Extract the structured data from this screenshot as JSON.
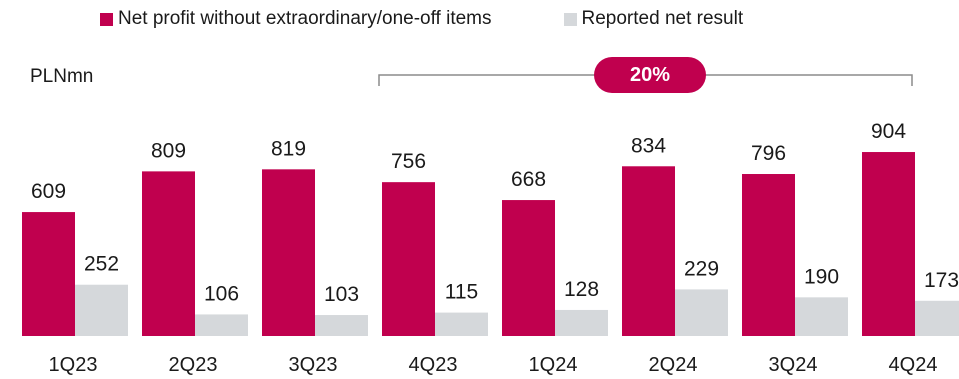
{
  "colors": {
    "series_primary": "#c0004e",
    "series_secondary": "#d5d8db",
    "bracket": "#8c8c8c"
  },
  "legend": {
    "primary_label": "Net profit without extraordinary/one-off items",
    "secondary_label": "Reported net result"
  },
  "unit_label": "PLNmn",
  "growth_badge": "20%",
  "chart_data": {
    "type": "bar",
    "categories": [
      "1Q23",
      "2Q23",
      "3Q23",
      "4Q23",
      "1Q24",
      "2Q24",
      "3Q24",
      "4Q24"
    ],
    "series": [
      {
        "name": "Net profit without extraordinary/one-off items",
        "values": [
          609,
          809,
          819,
          756,
          668,
          834,
          796,
          904
        ]
      },
      {
        "name": "Reported net result",
        "values": [
          252,
          106,
          103,
          115,
          128,
          229,
          190,
          173
        ]
      }
    ],
    "ylabel": "PLNmn",
    "ylim": [
      0,
      1040
    ],
    "grid": false,
    "legend_position": "top",
    "annotation": {
      "text": "20%",
      "from": "4Q23",
      "to": "4Q24"
    }
  }
}
